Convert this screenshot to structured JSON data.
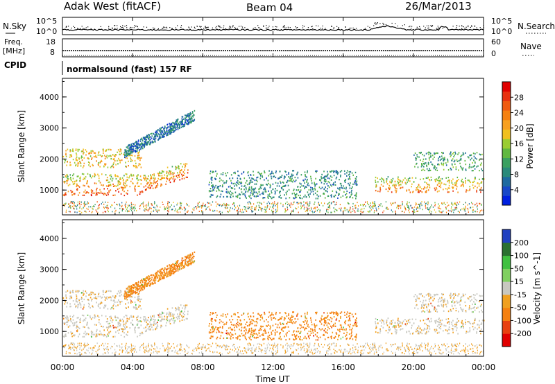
{
  "header": {
    "station": "Adak West (fitACF)",
    "beam": "Beam 04",
    "date": "26/Mar/2013"
  },
  "noise_panel": {
    "left_label": "N.Sky",
    "right_label": "N.Search",
    "left_ticks": [
      "10^5",
      "10^0"
    ],
    "right_ticks": [
      "10^5",
      "10^0"
    ]
  },
  "freq_panel": {
    "left_label_line1": "Freq.",
    "left_label_line2": "[MHz]",
    "left_ticks": [
      "18",
      "8"
    ],
    "right_label": "Nave",
    "right_ticks": [
      "60",
      "0"
    ]
  },
  "cpid_panel": {
    "label": "CPID",
    "mode": "normalsound (fast) 157 RF"
  },
  "power_panel": {
    "ylabel": "Slant Range [km]",
    "yticks": [
      "1000",
      "2000",
      "3000",
      "4000"
    ],
    "colorbar_label": "Power [dB]",
    "colorbar_ticks": [
      "4",
      "8",
      "12",
      "16",
      "20",
      "24",
      "28"
    ],
    "colors": [
      "#0020e0",
      "#1848c8",
      "#1e6aa0",
      "#2a8a7a",
      "#3aa060",
      "#60b840",
      "#9acd32",
      "#f0c020",
      "#f7a020",
      "#f58010",
      "#f05a10",
      "#e83010",
      "#e00000"
    ]
  },
  "velocity_panel": {
    "ylabel": "Slant Range [km]",
    "yticks": [
      "1000",
      "2000",
      "3000",
      "4000"
    ],
    "colorbar_label": "Velocity [m s^-1]",
    "colorbar_ticks": [
      "200",
      "100",
      "50",
      "15",
      "-15",
      "-50",
      "-100",
      "-200"
    ],
    "colors": [
      "#2040c0",
      "#2a7030",
      "#40c040",
      "#80d060",
      "#c8c8c0",
      "#f0a020",
      "#f58010",
      "#e84010",
      "#e00000"
    ]
  },
  "xaxis": {
    "label": "Time UT",
    "ticks": [
      "00:00",
      "04:00",
      "08:00",
      "12:00",
      "16:00",
      "20:00",
      "00:00"
    ]
  },
  "chart_data": {
    "type": "heatmap",
    "title": "Adak West (fitACF)  Beam 04  26/Mar/2013",
    "xlabel": "Time UT",
    "ylabel": "Slant Range [km]",
    "xlim": [
      0,
      24
    ],
    "ylim": [
      200,
      4600
    ],
    "x_ticks_hours": [
      0,
      4,
      8,
      12,
      16,
      20,
      24
    ],
    "y_ticks_km": [
      1000,
      2000,
      3000,
      4000
    ],
    "power_db_range": [
      0,
      30
    ],
    "velocity_range": [
      -250,
      250
    ],
    "regions": [
      {
        "name": "main-lower-band",
        "t_start": 0,
        "t_end": 7.2,
        "r_low": 800,
        "r_high": 1500,
        "power_db": 26,
        "velocity": 0
      },
      {
        "name": "main-upper-band",
        "t_start": 0,
        "t_end": 4.5,
        "r_low": 1700,
        "r_high": 2300,
        "power_db": 18,
        "velocity": 0
      },
      {
        "name": "rising-trace",
        "t_start": 3.5,
        "t_end": 7.5,
        "r_low": 2000,
        "r_high": 3500,
        "power_db": 6,
        "velocity": -40
      },
      {
        "name": "midday-patch",
        "t_start": 8.3,
        "t_end": 16.8,
        "r_low": 700,
        "r_high": 1600,
        "power_db": 8,
        "velocity": -40
      },
      {
        "name": "evening-lower-band",
        "t_start": 17.8,
        "t_end": 24,
        "r_low": 900,
        "r_high": 1400,
        "power_db": 24,
        "velocity": 0
      },
      {
        "name": "evening-upper-band",
        "t_start": 20,
        "t_end": 24,
        "r_low": 1600,
        "r_high": 2200,
        "power_db": 10,
        "velocity": 0
      }
    ]
  }
}
